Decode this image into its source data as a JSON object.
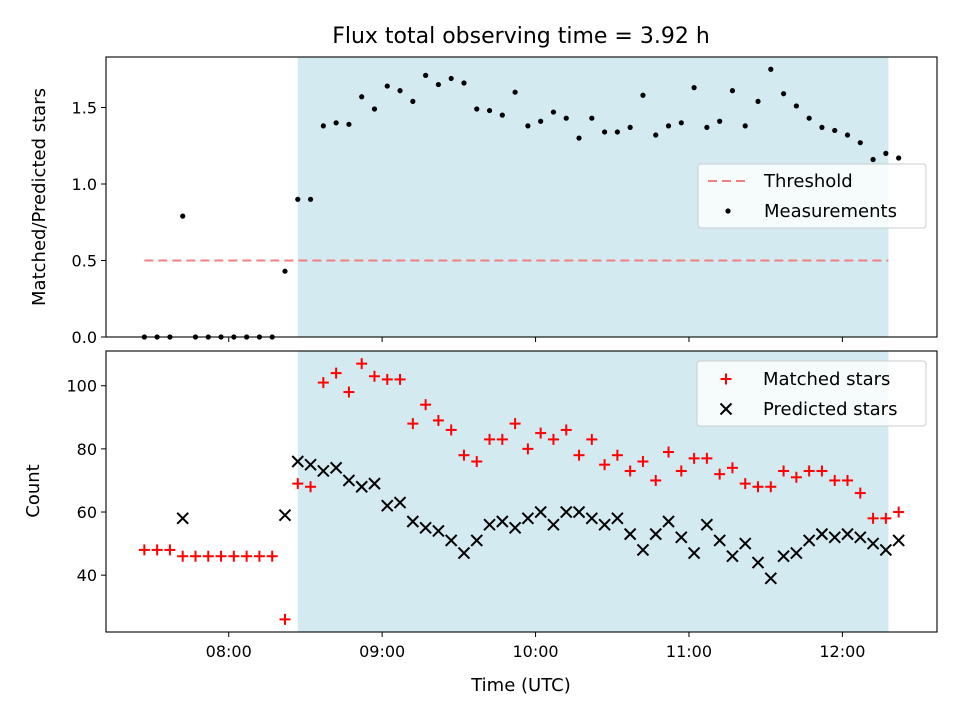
{
  "chart_data": [
    {
      "type": "scatter",
      "title": "Flux total observing time = 3.92 h",
      "xlabel": "",
      "ylabel": "Matched/Predicted stars",
      "xlim": [
        "07:12",
        "12:37"
      ],
      "ylim": [
        0,
        1.83
      ],
      "yticks": [
        0.0,
        0.5,
        1.0,
        1.5
      ],
      "ytick_labels": [
        "0.0",
        "0.5",
        "1.0",
        "1.5"
      ],
      "shaded_interval": [
        "08:27",
        "12:18"
      ],
      "shade_color": "#d3eaf0",
      "threshold": {
        "name": "Threshold",
        "value": 0.5,
        "x_range": [
          "07:27",
          "12:18"
        ],
        "color": "#f08080"
      },
      "legend": {
        "placement": "right",
        "entries": [
          "Threshold",
          "Measurements"
        ]
      },
      "series": [
        {
          "name": "Measurements",
          "marker": "dot",
          "color": "#000000",
          "points": [
            [
              "07:27",
              0.0
            ],
            [
              "07:32",
              0.0
            ],
            [
              "07:37",
              0.0
            ],
            [
              "07:42",
              0.79
            ],
            [
              "07:47",
              0.0
            ],
            [
              "07:52",
              0.0
            ],
            [
              "07:57",
              0.0
            ],
            [
              "08:02",
              0.0
            ],
            [
              "08:07",
              0.0
            ],
            [
              "08:12",
              0.0
            ],
            [
              "08:17",
              0.0
            ],
            [
              "08:22",
              0.43
            ],
            [
              "08:27",
              0.9
            ],
            [
              "08:32",
              0.9
            ],
            [
              "08:37",
              1.38
            ],
            [
              "08:42",
              1.4
            ],
            [
              "08:47",
              1.39
            ],
            [
              "08:52",
              1.57
            ],
            [
              "08:57",
              1.49
            ],
            [
              "09:02",
              1.64
            ],
            [
              "09:07",
              1.61
            ],
            [
              "09:12",
              1.54
            ],
            [
              "09:17",
              1.71
            ],
            [
              "09:22",
              1.65
            ],
            [
              "09:27",
              1.69
            ],
            [
              "09:32",
              1.66
            ],
            [
              "09:37",
              1.49
            ],
            [
              "09:42",
              1.48
            ],
            [
              "09:47",
              1.45
            ],
            [
              "09:52",
              1.6
            ],
            [
              "09:57",
              1.38
            ],
            [
              "10:02",
              1.41
            ],
            [
              "10:07",
              1.47
            ],
            [
              "10:12",
              1.43
            ],
            [
              "10:17",
              1.3
            ],
            [
              "10:22",
              1.43
            ],
            [
              "10:27",
              1.34
            ],
            [
              "10:32",
              1.34
            ],
            [
              "10:37",
              1.37
            ],
            [
              "10:42",
              1.58
            ],
            [
              "10:47",
              1.32
            ],
            [
              "10:52",
              1.38
            ],
            [
              "10:57",
              1.4
            ],
            [
              "11:02",
              1.63
            ],
            [
              "11:07",
              1.37
            ],
            [
              "11:12",
              1.41
            ],
            [
              "11:17",
              1.61
            ],
            [
              "11:22",
              1.38
            ],
            [
              "11:27",
              1.54
            ],
            [
              "11:32",
              1.75
            ],
            [
              "11:37",
              1.59
            ],
            [
              "11:42",
              1.51
            ],
            [
              "11:47",
              1.43
            ],
            [
              "11:52",
              1.37
            ],
            [
              "11:57",
              1.35
            ],
            [
              "12:02",
              1.32
            ],
            [
              "12:07",
              1.27
            ],
            [
              "12:12",
              1.16
            ],
            [
              "12:17",
              1.2
            ],
            [
              "12:22",
              1.17
            ]
          ]
        }
      ]
    },
    {
      "type": "scatter",
      "title": "",
      "xlabel": "Time (UTC)",
      "ylabel": "Count",
      "xlim": [
        "07:12",
        "12:37"
      ],
      "ylim": [
        22,
        111
      ],
      "yticks": [
        40,
        60,
        80,
        100
      ],
      "ytick_labels": [
        "40",
        "60",
        "80",
        "100"
      ],
      "xticks": [
        "08:00",
        "09:00",
        "10:00",
        "11:00",
        "12:00"
      ],
      "xtick_labels": [
        "08:00",
        "09:00",
        "10:00",
        "11:00",
        "12:00"
      ],
      "shaded_interval": [
        "08:27",
        "12:18"
      ],
      "shade_color": "#d3eaf0",
      "legend": {
        "placement": "top-right",
        "entries": [
          "Matched stars",
          "Predicted stars"
        ]
      },
      "series": [
        {
          "name": "Matched stars",
          "marker": "plus",
          "color": "#ff0000",
          "points": [
            [
              "07:27",
              48
            ],
            [
              "07:32",
              48
            ],
            [
              "07:37",
              48
            ],
            [
              "07:42",
              46
            ],
            [
              "07:47",
              46
            ],
            [
              "07:52",
              46
            ],
            [
              "07:57",
              46
            ],
            [
              "08:02",
              46
            ],
            [
              "08:07",
              46
            ],
            [
              "08:12",
              46
            ],
            [
              "08:17",
              46
            ],
            [
              "08:22",
              26
            ],
            [
              "08:27",
              69
            ],
            [
              "08:32",
              68
            ],
            [
              "08:37",
              101
            ],
            [
              "08:42",
              104
            ],
            [
              "08:47",
              98
            ],
            [
              "08:52",
              107
            ],
            [
              "08:57",
              103
            ],
            [
              "09:02",
              102
            ],
            [
              "09:07",
              102
            ],
            [
              "09:12",
              88
            ],
            [
              "09:17",
              94
            ],
            [
              "09:22",
              89
            ],
            [
              "09:27",
              86
            ],
            [
              "09:32",
              78
            ],
            [
              "09:37",
              76
            ],
            [
              "09:42",
              83
            ],
            [
              "09:47",
              83
            ],
            [
              "09:52",
              88
            ],
            [
              "09:57",
              80
            ],
            [
              "10:02",
              85
            ],
            [
              "10:07",
              83
            ],
            [
              "10:12",
              86
            ],
            [
              "10:17",
              78
            ],
            [
              "10:22",
              83
            ],
            [
              "10:27",
              75
            ],
            [
              "10:32",
              78
            ],
            [
              "10:37",
              73
            ],
            [
              "10:42",
              76
            ],
            [
              "10:47",
              70
            ],
            [
              "10:52",
              79
            ],
            [
              "10:57",
              73
            ],
            [
              "11:02",
              77
            ],
            [
              "11:07",
              77
            ],
            [
              "11:12",
              72
            ],
            [
              "11:17",
              74
            ],
            [
              "11:22",
              69
            ],
            [
              "11:27",
              68
            ],
            [
              "11:32",
              68
            ],
            [
              "11:37",
              73
            ],
            [
              "11:42",
              71
            ],
            [
              "11:47",
              73
            ],
            [
              "11:52",
              73
            ],
            [
              "11:57",
              70
            ],
            [
              "12:02",
              70
            ],
            [
              "12:07",
              66
            ],
            [
              "12:12",
              58
            ],
            [
              "12:17",
              58
            ],
            [
              "12:22",
              60
            ]
          ]
        },
        {
          "name": "Predicted stars",
          "marker": "x",
          "color": "#000000",
          "points": [
            [
              "07:42",
              58
            ],
            [
              "08:22",
              59
            ],
            [
              "08:27",
              76
            ],
            [
              "08:32",
              75
            ],
            [
              "08:37",
              73
            ],
            [
              "08:42",
              74
            ],
            [
              "08:47",
              70
            ],
            [
              "08:52",
              68
            ],
            [
              "08:57",
              69
            ],
            [
              "09:02",
              62
            ],
            [
              "09:07",
              63
            ],
            [
              "09:12",
              57
            ],
            [
              "09:17",
              55
            ],
            [
              "09:22",
              54
            ],
            [
              "09:27",
              51
            ],
            [
              "09:32",
              47
            ],
            [
              "09:37",
              51
            ],
            [
              "09:42",
              56
            ],
            [
              "09:47",
              57
            ],
            [
              "09:52",
              55
            ],
            [
              "09:57",
              58
            ],
            [
              "10:02",
              60
            ],
            [
              "10:07",
              56
            ],
            [
              "10:12",
              60
            ],
            [
              "10:17",
              60
            ],
            [
              "10:22",
              58
            ],
            [
              "10:27",
              56
            ],
            [
              "10:32",
              58
            ],
            [
              "10:37",
              53
            ],
            [
              "10:42",
              48
            ],
            [
              "10:47",
              53
            ],
            [
              "10:52",
              57
            ],
            [
              "10:57",
              52
            ],
            [
              "11:02",
              47
            ],
            [
              "11:07",
              56
            ],
            [
              "11:12",
              51
            ],
            [
              "11:17",
              46
            ],
            [
              "11:22",
              50
            ],
            [
              "11:27",
              44
            ],
            [
              "11:32",
              39
            ],
            [
              "11:37",
              46
            ],
            [
              "11:42",
              47
            ],
            [
              "11:47",
              51
            ],
            [
              "11:52",
              53
            ],
            [
              "11:57",
              52
            ],
            [
              "12:02",
              53
            ],
            [
              "12:07",
              52
            ],
            [
              "12:12",
              50
            ],
            [
              "12:17",
              48
            ],
            [
              "12:22",
              51
            ]
          ]
        }
      ]
    }
  ]
}
